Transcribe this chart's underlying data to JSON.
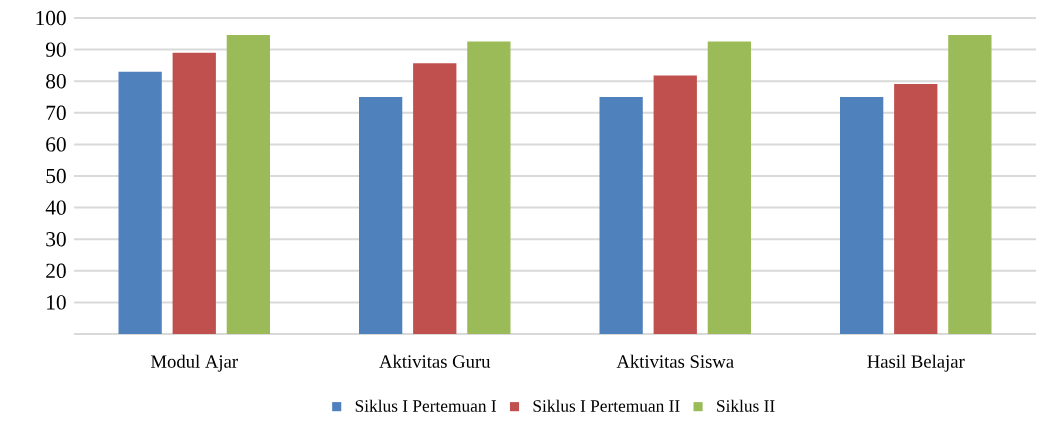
{
  "chart_data": {
    "type": "bar",
    "categories": [
      "Modul Ajar",
      "Aktivitas Guru",
      "Aktivitas Siswa",
      "Hasil Belajar"
    ],
    "series": [
      {
        "name": "Siklus I Pertemuan I",
        "color": "#4f81bd",
        "values": [
          83,
          75,
          75,
          75
        ]
      },
      {
        "name": "Siklus I Pertemuan II",
        "color": "#c0504d",
        "values": [
          89,
          85.7,
          81.8,
          79.1
        ]
      },
      {
        "name": "Siklus II",
        "color": "#9bbb59",
        "values": [
          94.6,
          92.6,
          92.6,
          94.6
        ]
      }
    ],
    "ylim": [
      0,
      100
    ],
    "yticks": [
      {
        "value": 0,
        "label": null
      },
      10,
      20,
      30,
      40,
      50,
      60,
      70,
      80,
      90,
      100
    ],
    "grid": "y",
    "legend": "bottom"
  }
}
